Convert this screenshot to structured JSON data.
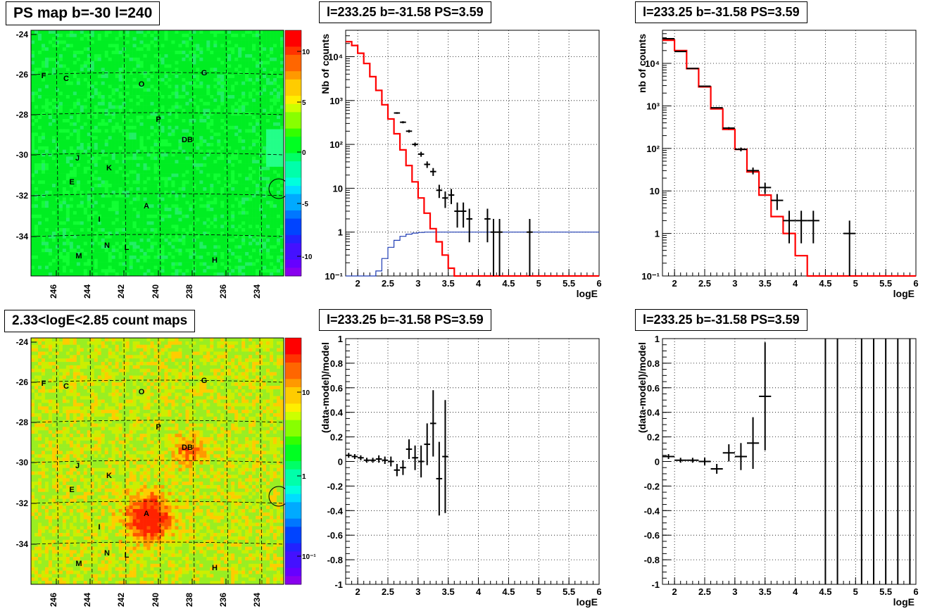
{
  "panels": {
    "map1_title": "PS map b=-30 l=240",
    "map2_title": "2.33<logE<2.85 count maps",
    "spec1_title": "l=233.25 b=-31.58 PS=3.59",
    "spec2_title": "l=233.25 b=-31.58 PS=3.59",
    "res1_title": "l=233.25 b=-31.58 PS=3.59",
    "res2_title": "l=233.25 b=-31.58 PS=3.59"
  },
  "colors": {
    "data": "#000000",
    "model": "#ff0000",
    "aux": "#1f3cb4"
  },
  "chart_data": [
    {
      "id": "map1",
      "type": "heatmap",
      "title": "PS map b=-30 l=240",
      "x_ticks": [
        "246",
        "244",
        "242",
        "240",
        "238",
        "236",
        "234"
      ],
      "y_ticks": [
        "-24",
        "-26",
        "-28",
        "-30",
        "-32",
        "-34"
      ],
      "colorbar_ticks": [
        "10",
        "5",
        "0",
        "-5",
        "-10"
      ],
      "sources": [
        "F",
        "C",
        "O",
        "G",
        "P",
        "DB",
        "J",
        "K",
        "E",
        "A",
        "I",
        "N",
        "L",
        "M",
        "H"
      ],
      "marker": "circle at l=233.25 b=-31.58"
    },
    {
      "id": "map2",
      "type": "heatmap",
      "title": "2.33<logE<2.85 count maps",
      "x_ticks": [
        "246",
        "244",
        "242",
        "240",
        "238",
        "236",
        "234"
      ],
      "y_ticks": [
        "-24",
        "-26",
        "-28",
        "-30",
        "-32",
        "-34"
      ],
      "colorbar_ticks": [
        "10",
        "1",
        "10⁻¹"
      ],
      "sources": [
        "F",
        "C",
        "O",
        "G",
        "P",
        "DB",
        "J",
        "K",
        "E",
        "A",
        "I",
        "N",
        "L",
        "M",
        "H"
      ]
    },
    {
      "id": "spec1",
      "type": "line",
      "title": "l=233.25 b=-31.58 PS=3.59",
      "xlabel": "logE",
      "ylabel": "Nb of counts",
      "log_y": true,
      "xlim": [
        1.8,
        6.0
      ],
      "ylim": [
        0.1,
        40000
      ],
      "x_ticks": [
        "2",
        "2.5",
        "3",
        "3.5",
        "4",
        "4.5",
        "5",
        "5.5",
        "6"
      ],
      "y_ticks": [
        "10⁻¹",
        "1",
        "10",
        "10²",
        "10³",
        "10⁴"
      ],
      "model_step": {
        "edges": [
          1.8,
          1.9,
          2.0,
          2.1,
          2.2,
          2.3,
          2.4,
          2.5,
          2.6,
          2.7,
          2.8,
          2.9,
          3.0,
          3.1,
          3.2,
          3.3,
          3.4,
          3.5,
          3.6,
          3.7,
          3.8,
          3.9,
          4.0,
          4.1,
          4.2,
          4.3,
          6.0
        ],
        "values": [
          22000,
          18000,
          12000,
          7000,
          3500,
          1700,
          800,
          380,
          175,
          75,
          33,
          14,
          6,
          2.7,
          1.2,
          0.6,
          0.3,
          0.15,
          0.1,
          0.1,
          0.1,
          0.1,
          0.1,
          0.1,
          0.1,
          0.1
        ]
      },
      "aux_step": {
        "edges": [
          1.8,
          2.2,
          2.3,
          2.4,
          2.5,
          2.6,
          2.7,
          2.8,
          2.9,
          3.0,
          3.1,
          6.0
        ],
        "values": [
          0.1,
          0.1,
          0.13,
          0.25,
          0.45,
          0.65,
          0.8,
          0.9,
          0.95,
          0.98,
          1
        ]
      },
      "data_points": [
        {
          "x": 2.65,
          "y": 520,
          "xe": 0.05
        },
        {
          "x": 2.75,
          "y": 320,
          "xe": 0.05
        },
        {
          "x": 2.85,
          "y": 200,
          "xe": 0.05
        },
        {
          "x": 2.95,
          "y": 100,
          "xe": 0.05
        },
        {
          "x": 3.05,
          "y": 60,
          "xe": 0.05
        },
        {
          "x": 3.15,
          "y": 35,
          "xe": 0.05
        },
        {
          "x": 3.25,
          "y": 24,
          "xe": 0.05
        },
        {
          "x": 3.35,
          "y": 9,
          "xe": 0.05
        },
        {
          "x": 3.45,
          "y": 6,
          "xe": 0.05
        },
        {
          "x": 3.55,
          "y": 7,
          "xe": 0.05
        },
        {
          "x": 3.65,
          "y": 3,
          "xe": 0.05
        },
        {
          "x": 3.75,
          "y": 3,
          "xe": 0.05
        },
        {
          "x": 3.85,
          "y": 2,
          "xe": 0.05
        },
        {
          "x": 4.15,
          "y": 2,
          "xe": 0.05
        },
        {
          "x": 4.25,
          "y": 1,
          "xe": 0.05
        },
        {
          "x": 4.35,
          "y": 1,
          "xe": 0.05
        },
        {
          "x": 4.85,
          "y": 1,
          "xe": 0.05
        }
      ]
    },
    {
      "id": "spec2",
      "type": "line",
      "title": "l=233.25 b=-31.58 PS=3.59",
      "xlabel": "logE",
      "ylabel": "nb of counts",
      "log_y": true,
      "xlim": [
        1.8,
        6.0
      ],
      "ylim": [
        0.1,
        60000
      ],
      "x_ticks": [
        "2",
        "2.5",
        "3",
        "3.5",
        "4",
        "4.5",
        "5",
        "5.5",
        "6"
      ],
      "y_ticks": [
        "10⁻¹",
        "1",
        "10",
        "10²",
        "10³",
        "10⁴"
      ],
      "model_step": {
        "edges": [
          1.8,
          2.0,
          2.2,
          2.4,
          2.6,
          2.8,
          3.0,
          3.2,
          3.4,
          3.6,
          3.8,
          4.0,
          4.2,
          6.0
        ],
        "values": [
          35000,
          20000,
          7500,
          2800,
          850,
          280,
          95,
          28,
          8,
          2.5,
          1,
          0.3,
          0.1
        ]
      },
      "data_points": [
        {
          "x": 1.9,
          "y": 38000,
          "xe": 0.1
        },
        {
          "x": 2.1,
          "y": 19000,
          "xe": 0.1
        },
        {
          "x": 2.3,
          "y": 7600,
          "xe": 0.1
        },
        {
          "x": 2.5,
          "y": 2900,
          "xe": 0.1
        },
        {
          "x": 2.7,
          "y": 900,
          "xe": 0.1
        },
        {
          "x": 2.9,
          "y": 300,
          "xe": 0.1
        },
        {
          "x": 3.1,
          "y": 95,
          "xe": 0.1
        },
        {
          "x": 3.3,
          "y": 30,
          "xe": 0.1
        },
        {
          "x": 3.5,
          "y": 12,
          "xe": 0.1
        },
        {
          "x": 3.7,
          "y": 6,
          "xe": 0.1
        },
        {
          "x": 3.9,
          "y": 2,
          "xe": 0.1
        },
        {
          "x": 4.1,
          "y": 2,
          "xe": 0.1
        },
        {
          "x": 4.3,
          "y": 2,
          "xe": 0.1
        },
        {
          "x": 4.9,
          "y": 1,
          "xe": 0.1
        }
      ]
    },
    {
      "id": "res1",
      "type": "scatter",
      "title": "l=233.25 b=-31.58 PS=3.59",
      "xlabel": "logE",
      "ylabel": "(data-model)/model",
      "xlim": [
        1.8,
        6.0
      ],
      "ylim": [
        -1,
        1
      ],
      "x_ticks": [
        "2",
        "2.5",
        "3",
        "3.5",
        "4",
        "4.5",
        "5",
        "5.5",
        "6"
      ],
      "y_ticks": [
        "-1",
        "-0.8",
        "-0.6",
        "-0.4",
        "-0.2",
        "0",
        "0.2",
        "0.4",
        "0.6",
        "0.8",
        "1"
      ],
      "data_points": [
        {
          "x": 1.85,
          "y": 0.05,
          "xe": 0.05,
          "ye": 0.02
        },
        {
          "x": 1.95,
          "y": 0.04,
          "xe": 0.05,
          "ye": 0.02
        },
        {
          "x": 2.05,
          "y": 0.03,
          "xe": 0.05,
          "ye": 0.02
        },
        {
          "x": 2.15,
          "y": 0.01,
          "xe": 0.05,
          "ye": 0.02
        },
        {
          "x": 2.25,
          "y": 0.01,
          "xe": 0.05,
          "ye": 0.02
        },
        {
          "x": 2.35,
          "y": 0.02,
          "xe": 0.05,
          "ye": 0.03
        },
        {
          "x": 2.45,
          "y": 0.01,
          "xe": 0.05,
          "ye": 0.03
        },
        {
          "x": 2.55,
          "y": 0.0,
          "xe": 0.05,
          "ye": 0.04
        },
        {
          "x": 2.65,
          "y": -0.07,
          "xe": 0.05,
          "ye": 0.05
        },
        {
          "x": 2.75,
          "y": -0.05,
          "xe": 0.05,
          "ye": 0.06
        },
        {
          "x": 2.85,
          "y": 0.1,
          "xe": 0.05,
          "ye": 0.08
        },
        {
          "x": 2.95,
          "y": 0.03,
          "xe": 0.05,
          "ye": 0.1
        },
        {
          "x": 3.05,
          "y": 0.0,
          "xe": 0.05,
          "ye": 0.13
        },
        {
          "x": 3.15,
          "y": 0.14,
          "xe": 0.05,
          "ye": 0.17
        },
        {
          "x": 3.25,
          "y": 0.31,
          "xe": 0.05,
          "ye": 0.27
        },
        {
          "x": 3.35,
          "y": -0.14,
          "xe": 0.05,
          "ye": 0.3
        },
        {
          "x": 3.45,
          "y": 0.04,
          "xe": 0.05,
          "ye": 0.46
        }
      ]
    },
    {
      "id": "res2",
      "type": "scatter",
      "title": "l=233.25 b=-31.58 PS=3.59",
      "xlabel": "logE",
      "ylabel": "(data-model)/model",
      "xlim": [
        1.8,
        6.0
      ],
      "ylim": [
        -1,
        1
      ],
      "x_ticks": [
        "2",
        "2.5",
        "3",
        "3.5",
        "4",
        "4.5",
        "5",
        "5.5",
        "6"
      ],
      "y_ticks": [
        "-1",
        "-0.8",
        "-0.6",
        "-0.4",
        "-0.2",
        "0",
        "0.2",
        "0.4",
        "0.6",
        "0.8",
        "1"
      ],
      "data_points": [
        {
          "x": 1.9,
          "y": 0.04,
          "xe": 0.1,
          "ye": 0.02
        },
        {
          "x": 2.1,
          "y": 0.01,
          "xe": 0.1,
          "ye": 0.02
        },
        {
          "x": 2.3,
          "y": 0.01,
          "xe": 0.1,
          "ye": 0.02
        },
        {
          "x": 2.5,
          "y": 0.0,
          "xe": 0.1,
          "ye": 0.03
        },
        {
          "x": 2.7,
          "y": -0.06,
          "xe": 0.1,
          "ye": 0.04
        },
        {
          "x": 2.9,
          "y": 0.07,
          "xe": 0.1,
          "ye": 0.07
        },
        {
          "x": 3.1,
          "y": 0.04,
          "xe": 0.1,
          "ye": 0.11
        },
        {
          "x": 3.3,
          "y": 0.15,
          "xe": 0.1,
          "ye": 0.21
        },
        {
          "x": 3.5,
          "y": 0.53,
          "xe": 0.1,
          "ye": 0.44
        },
        {
          "x": 4.5,
          "y": 0,
          "xe": 0,
          "ye": 2
        },
        {
          "x": 4.7,
          "y": 0,
          "xe": 0,
          "ye": 2
        },
        {
          "x": 5.1,
          "y": 0,
          "xe": 0,
          "ye": 2
        },
        {
          "x": 5.3,
          "y": 0,
          "xe": 0,
          "ye": 2
        },
        {
          "x": 5.5,
          "y": 0,
          "xe": 0,
          "ye": 2
        },
        {
          "x": 5.7,
          "y": 0,
          "xe": 0,
          "ye": 2
        },
        {
          "x": 5.9,
          "y": 0,
          "xe": 0,
          "ye": 2
        }
      ]
    }
  ]
}
